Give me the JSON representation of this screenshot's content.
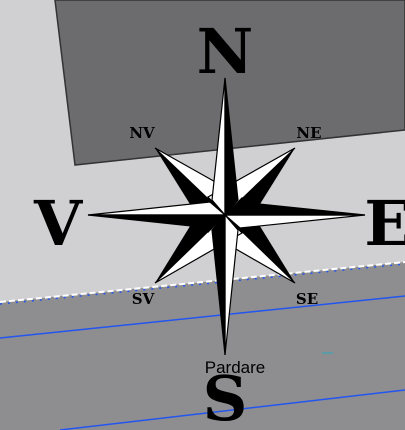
{
  "map": {
    "colors": {
      "background": "#d0d0d2",
      "building": "#6c6c6e",
      "area": "#8e8e90",
      "road_line": "#2355f0",
      "boundary_dashed": "#2355f0",
      "rose_fill": "#000000",
      "rose_light": "#ffffff"
    },
    "compass": {
      "north": "N",
      "south": "S",
      "east": "E",
      "west": "V",
      "northeast": "NE",
      "northwest": "NV",
      "southeast": "SE",
      "southwest": "SV"
    },
    "place_label": "Pardare"
  }
}
